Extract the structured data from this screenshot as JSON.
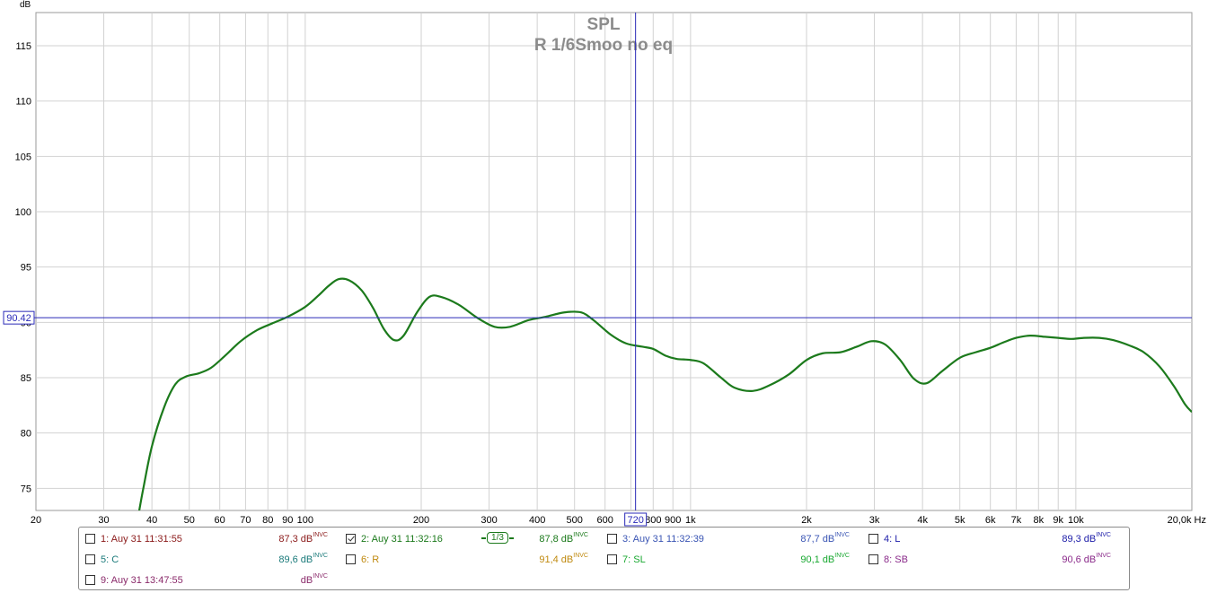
{
  "chart_data": {
    "type": "line",
    "title": "SPL",
    "subtitle": "R 1/6Smoo no eq",
    "ylabel": "dB",
    "xunit": "Hz",
    "xscale": "log",
    "xlim": [
      20,
      20000
    ],
    "ylim": [
      73,
      118
    ],
    "grid": true,
    "y_ticks": [
      "75",
      "80",
      "85",
      "90",
      "95",
      "100",
      "105",
      "110",
      "115"
    ],
    "x_ticks": [
      {
        "v": 20,
        "t": "20"
      },
      {
        "v": 30,
        "t": "30"
      },
      {
        "v": 40,
        "t": "40"
      },
      {
        "v": 50,
        "t": "50"
      },
      {
        "v": 60,
        "t": "60"
      },
      {
        "v": 70,
        "t": "70"
      },
      {
        "v": 80,
        "t": "80"
      },
      {
        "v": 90,
        "t": "90"
      },
      {
        "v": 100,
        "t": "100"
      },
      {
        "v": 200,
        "t": "200"
      },
      {
        "v": 300,
        "t": "300"
      },
      {
        "v": 400,
        "t": "400"
      },
      {
        "v": 500,
        "t": "500"
      },
      {
        "v": 600,
        "t": "600"
      },
      {
        "v": 800,
        "t": "800"
      },
      {
        "v": 900,
        "t": "900"
      },
      {
        "v": 1000,
        "t": "1k"
      },
      {
        "v": 2000,
        "t": "2k"
      },
      {
        "v": 3000,
        "t": "3k"
      },
      {
        "v": 4000,
        "t": "4k"
      },
      {
        "v": 5000,
        "t": "5k"
      },
      {
        "v": 6000,
        "t": "6k"
      },
      {
        "v": 7000,
        "t": "7k"
      },
      {
        "v": 8000,
        "t": "8k"
      },
      {
        "v": 9000,
        "t": "9k"
      },
      {
        "v": 10000,
        "t": "10k"
      },
      {
        "v": 20000,
        "t": "20,0k Hz"
      }
    ],
    "cursor": {
      "x": 720,
      "y": 90.42,
      "x_label": "720",
      "y_label": "90.42",
      "color": "#2a2ab8"
    },
    "series": [
      {
        "name": "2: Auy 31 11:32:16",
        "color": "#1c7a1c",
        "points": [
          [
            37,
            72.8
          ],
          [
            38,
            75.0
          ],
          [
            40,
            78.8
          ],
          [
            43,
            82.3
          ],
          [
            46,
            84.4
          ],
          [
            49,
            85.1
          ],
          [
            53,
            85.4
          ],
          [
            57,
            85.9
          ],
          [
            62,
            87.0
          ],
          [
            68,
            88.3
          ],
          [
            75,
            89.3
          ],
          [
            82,
            89.9
          ],
          [
            90,
            90.5
          ],
          [
            100,
            91.4
          ],
          [
            108,
            92.4
          ],
          [
            115,
            93.3
          ],
          [
            122,
            93.9
          ],
          [
            130,
            93.8
          ],
          [
            140,
            92.9
          ],
          [
            150,
            91.3
          ],
          [
            160,
            89.4
          ],
          [
            170,
            88.4
          ],
          [
            180,
            88.8
          ],
          [
            195,
            90.9
          ],
          [
            210,
            92.3
          ],
          [
            225,
            92.3
          ],
          [
            250,
            91.6
          ],
          [
            280,
            90.4
          ],
          [
            310,
            89.6
          ],
          [
            340,
            89.6
          ],
          [
            380,
            90.2
          ],
          [
            420,
            90.5
          ],
          [
            470,
            90.9
          ],
          [
            520,
            90.9
          ],
          [
            560,
            90.2
          ],
          [
            620,
            88.9
          ],
          [
            680,
            88.1
          ],
          [
            750,
            87.8
          ],
          [
            800,
            87.6
          ],
          [
            860,
            87.0
          ],
          [
            920,
            86.7
          ],
          [
            1000,
            86.6
          ],
          [
            1080,
            86.3
          ],
          [
            1200,
            85.0
          ],
          [
            1300,
            84.1
          ],
          [
            1450,
            83.8
          ],
          [
            1600,
            84.3
          ],
          [
            1800,
            85.3
          ],
          [
            2000,
            86.6
          ],
          [
            2200,
            87.2
          ],
          [
            2450,
            87.3
          ],
          [
            2700,
            87.8
          ],
          [
            2950,
            88.3
          ],
          [
            3200,
            88.0
          ],
          [
            3500,
            86.6
          ],
          [
            3800,
            84.9
          ],
          [
            4100,
            84.5
          ],
          [
            4500,
            85.6
          ],
          [
            5000,
            86.8
          ],
          [
            5500,
            87.3
          ],
          [
            6000,
            87.7
          ],
          [
            6500,
            88.2
          ],
          [
            7000,
            88.6
          ],
          [
            7600,
            88.8
          ],
          [
            8300,
            88.7
          ],
          [
            9000,
            88.6
          ],
          [
            9700,
            88.5
          ],
          [
            10500,
            88.6
          ],
          [
            11500,
            88.6
          ],
          [
            12500,
            88.4
          ],
          [
            13800,
            87.9
          ],
          [
            15000,
            87.3
          ],
          [
            16500,
            86.0
          ],
          [
            18000,
            84.2
          ],
          [
            19200,
            82.6
          ],
          [
            20000,
            81.9
          ]
        ]
      }
    ]
  },
  "legend": {
    "entries": [
      {
        "label": "1: Auy 31 11:31:55",
        "value": "87,3 dB",
        "sup": "INVC",
        "checked": false,
        "color": "#8b1a1a"
      },
      {
        "label": "2: Auy 31 11:32:16",
        "value": "87,8 dB",
        "sup": "INVC",
        "checked": true,
        "color": "#1c7a1c",
        "smoothing": "1/3"
      },
      {
        "label": "3: Auy 31 11:32:39",
        "value": "87,7 dB",
        "sup": "INVC",
        "checked": false,
        "color": "#3a55b4"
      },
      {
        "label": "4: L",
        "value": "89,3 dB",
        "sup": "INVC",
        "checked": false,
        "color": "#1c1ca8"
      },
      {
        "label": "5: C",
        "value": "89,6 dB",
        "sup": "INVC",
        "checked": false,
        "color": "#1a7a7a"
      },
      {
        "label": "6: R",
        "value": "91,4 dB",
        "sup": "INVC",
        "checked": false,
        "color": "#c08a10"
      },
      {
        "label": "7: SL",
        "value": "90,1 dB",
        "sup": "INVC",
        "checked": false,
        "color": "#18a830"
      },
      {
        "label": "8: SB",
        "value": "90,6 dB",
        "sup": "INVC",
        "checked": false,
        "color": "#8a2a8a"
      },
      {
        "label": "9: Auy 31 13:47:55",
        "value": "dB",
        "sup": "INVC",
        "checked": false,
        "color": "#8a2a6a"
      }
    ]
  }
}
